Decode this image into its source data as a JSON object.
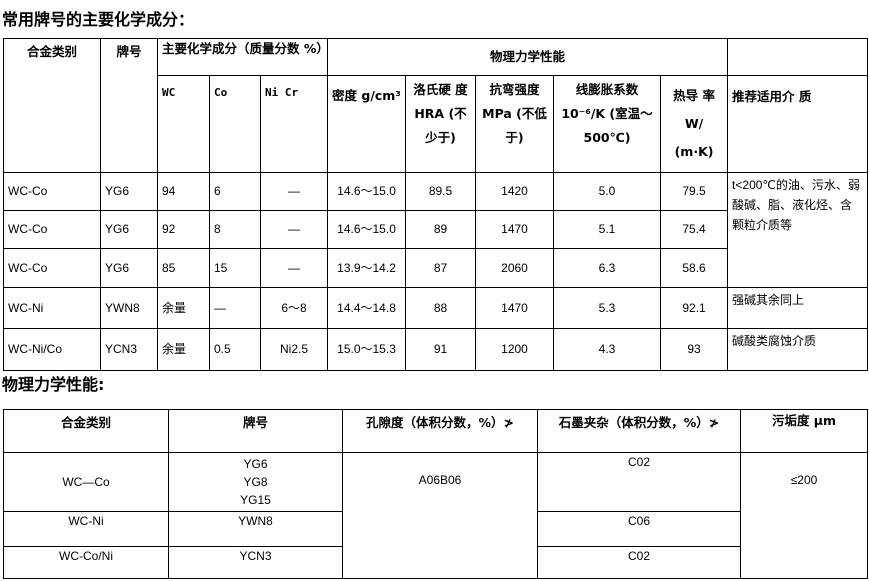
{
  "title1": "常用牌号的主要化学成分：",
  "table1": {
    "headers": {
      "alloy_type": "合金类别",
      "grade": "牌号",
      "chem_group": "主要化学成分（质量分数 %）",
      "phys_group": "物理力学性能",
      "wc": "WC",
      "co": "Co",
      "nicr": "Ni Cr",
      "density": "密度 g/cm³",
      "hardness": "洛氏硬 度 HRA (不少于)",
      "bending": "抗弯强度 MPa (不低于)",
      "expansion": "线膨胀系数 10⁻⁶/K (室温～500℃)",
      "thermal": "热导 率 W/ (m·K)",
      "medium": "推荐适用介 质"
    },
    "rows": [
      [
        "WC-Co",
        "YG6",
        "94",
        "6",
        "—",
        "14.6～15.0",
        "89.5",
        "1420",
        "5.0",
        "79.5"
      ],
      [
        "WC-Co",
        "YG6",
        "92",
        "8",
        "—",
        "14.6～15.0",
        "89",
        "1470",
        "5.1",
        "75.4"
      ],
      [
        "WC-Co",
        "YG6",
        "85",
        "15",
        "—",
        "13.9～14.2",
        "87",
        "2060",
        "6.3",
        "58.6"
      ],
      [
        "WC-Ni",
        "YWN8",
        "余量",
        "—",
        "6～8",
        "14.4～14.8",
        "88",
        "1470",
        "5.3",
        "92.1"
      ],
      [
        "WC-Ni/Co",
        "YCN3",
        "余量",
        "0.5",
        "Ni2.5",
        "15.0～15.3",
        "91",
        "1200",
        "4.3",
        "93"
      ]
    ],
    "media": [
      "t<200℃的油、污水、弱酸碱、脂、液化烃、含颗粒介质等",
      "强碱其余同上",
      "碱酸类腐蚀介质"
    ]
  },
  "title2": "物理力学性能:",
  "table2": {
    "headers": [
      "合金类别",
      "牌号",
      "孔隙度（体积分数，%）≯",
      "石墨夹杂（体积分数，%）≯",
      "污垢度 μm"
    ],
    "rows": [
      {
        "alloy": "WC—Co",
        "grades": "YG6\nYG8\nYG15",
        "graphite": "C02"
      },
      {
        "alloy": "WC-Ni",
        "grades": "YWN8",
        "graphite": "C06"
      },
      {
        "alloy": "WC-Co/Ni",
        "grades": "YCN3",
        "graphite": "C02"
      }
    ],
    "porosity": "A06B06",
    "fouling": "≤200"
  }
}
